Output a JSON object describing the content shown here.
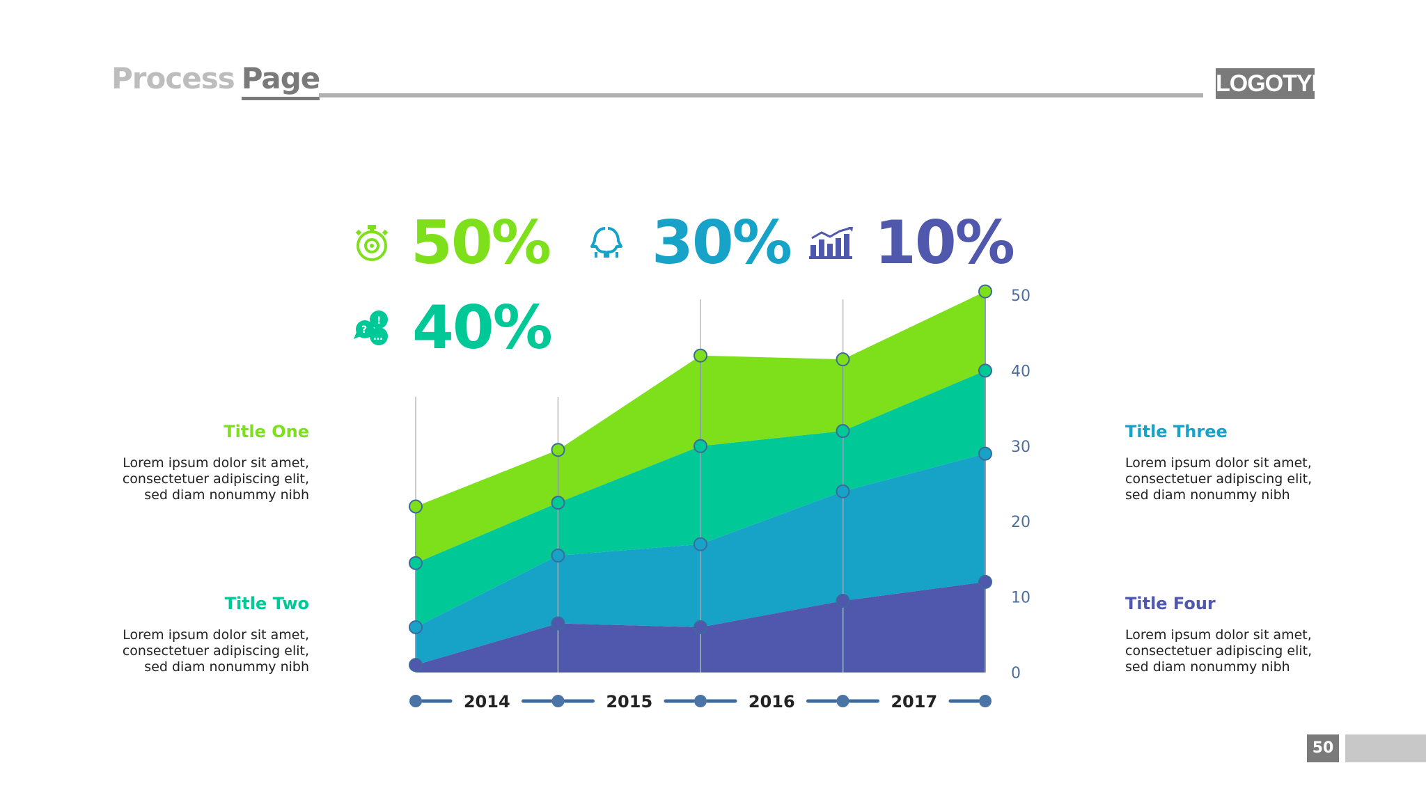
{
  "header": {
    "title_light": "Process",
    "title_dark": "Page",
    "logo": "LOGOTYPE"
  },
  "stats": [
    {
      "value": "50%",
      "icon": "stopwatch-icon",
      "color": "#7de01a"
    },
    {
      "value": "30%",
      "icon": "two-heads-icon",
      "color": "#17a2c7"
    },
    {
      "value": "10%",
      "icon": "bar-growth-chart-icon",
      "color": "#4f58ac"
    },
    {
      "value": "40%",
      "icon": "chat-bubbles-icon",
      "color": "#00c896"
    }
  ],
  "sections": [
    {
      "title": "Title One",
      "color": "#7de01a",
      "lines": [
        "Lorem ipsum dolor sit amet,",
        "consectetuer adipiscing elit,",
        "sed diam nonummy nibh"
      ]
    },
    {
      "title": "Title Two",
      "color": "#00c896",
      "lines": [
        "Lorem ipsum dolor sit amet,",
        "consectetuer adipiscing elit,",
        "sed diam nonummy nibh"
      ]
    },
    {
      "title": "Title Three",
      "color": "#17a2c7",
      "lines": [
        "Lorem ipsum dolor sit amet,",
        "consectetuer adipiscing elit,",
        "sed diam nonummy nibh"
      ]
    },
    {
      "title": "Title Four",
      "color": "#4f58ac",
      "lines": [
        "Lorem ipsum dolor sit amet,",
        "consectetuer adipiscing elit,",
        "sed diam nonummy nibh"
      ]
    }
  ],
  "page_number": "50",
  "chart_data": {
    "type": "area",
    "stacked": true,
    "x": [
      2014,
      2014.5,
      2015,
      2015.5,
      2016
    ],
    "x_tick_labels": [
      "2014",
      "2015",
      "2016",
      "2017"
    ],
    "y_ticks": [
      "0",
      "10",
      "20",
      "30",
      "40",
      "50"
    ],
    "ylim": [
      0,
      50
    ],
    "series": [
      {
        "name": "Title Four",
        "color": "#4f58ac",
        "values": [
          1,
          6.5,
          6,
          9.5,
          12
        ]
      },
      {
        "name": "Title Three",
        "color": "#17a2c7",
        "values": [
          6,
          15.5,
          17,
          24,
          29
        ]
      },
      {
        "name": "Title Two",
        "color": "#00c896",
        "values": [
          14.5,
          22.5,
          30,
          32,
          40
        ]
      },
      {
        "name": "Title One",
        "color": "#7de01a",
        "values": [
          22,
          29.5,
          42,
          41.5,
          50.5
        ]
      }
    ],
    "title": "",
    "xlabel": "",
    "ylabel": ""
  }
}
